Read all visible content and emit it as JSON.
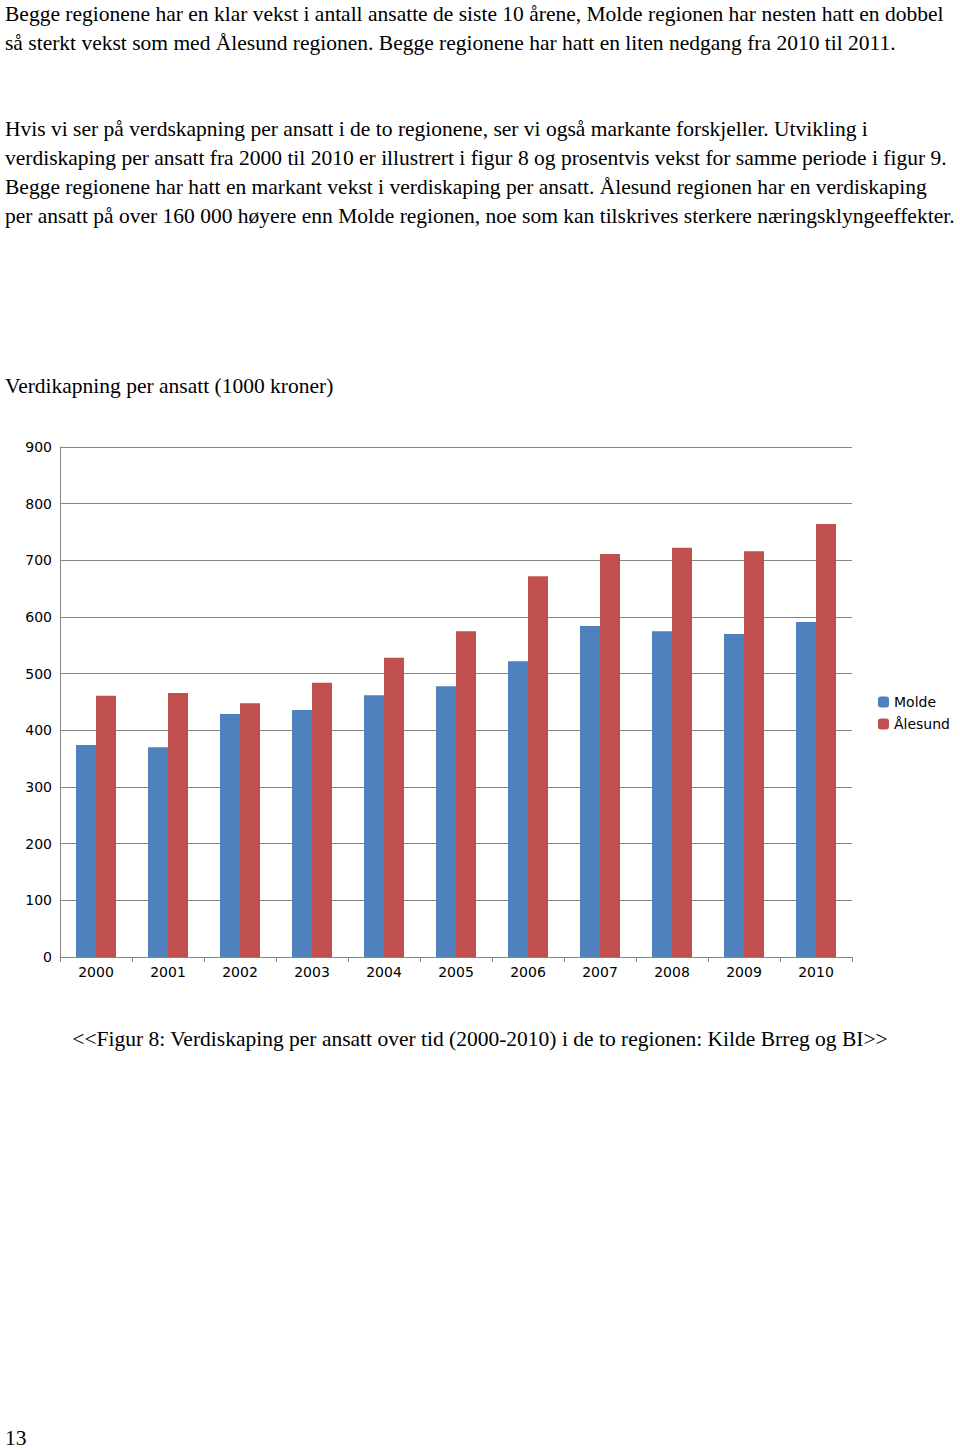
{
  "paragraphs": [
    "Begge regionene har en klar vekst i antall ansatte de siste 10 årene, Molde regionen har nesten hatt en dobbel så sterkt vekst som med Ålesund regionen. Begge regionene har hatt en liten nedgang fra 2010 til 2011.",
    "Hvis vi ser på verdskapning per ansatt i de to regionene, ser vi også markante forskjeller. Utvikling i verdiskaping per ansatt fra 2000 til 2010 er illustrert i figur 8 og prosentvis vekst for samme periode i figur 9. Begge regionene har hatt en markant vekst i verdiskaping per ansatt. Ålesund regionen har en verdiskaping per ansatt på over 160 000 høyere enn Molde regionen, noe som kan tilskrives sterkere næringsklyngeeffekter."
  ],
  "heading": "Verdikapning per ansatt (1000 kroner)",
  "chart_data": {
    "type": "bar",
    "categories": [
      "2000",
      "2001",
      "2002",
      "2003",
      "2004",
      "2005",
      "2006",
      "2007",
      "2008",
      "2009",
      "2010"
    ],
    "series": [
      {
        "name": "Molde",
        "color": "#4f81bd",
        "values": [
          374,
          370,
          429,
          436,
          462,
          478,
          522,
          584,
          575,
          570,
          591
        ]
      },
      {
        "name": "Ålesund",
        "color": "#c0504d",
        "values": [
          461,
          466,
          448,
          484,
          528,
          575,
          672,
          711,
          722,
          716,
          764
        ]
      }
    ],
    "ylim": [
      0,
      900
    ],
    "yticks": [
      0,
      100,
      200,
      300,
      400,
      500,
      600,
      700,
      800,
      900
    ],
    "grid": true,
    "legend": "right"
  },
  "caption": "<<Figur 8: Verdiskaping per ansatt over tid (2000-2010) i de to regionen: Kilde Brreg og BI>>",
  "page_number": "13"
}
